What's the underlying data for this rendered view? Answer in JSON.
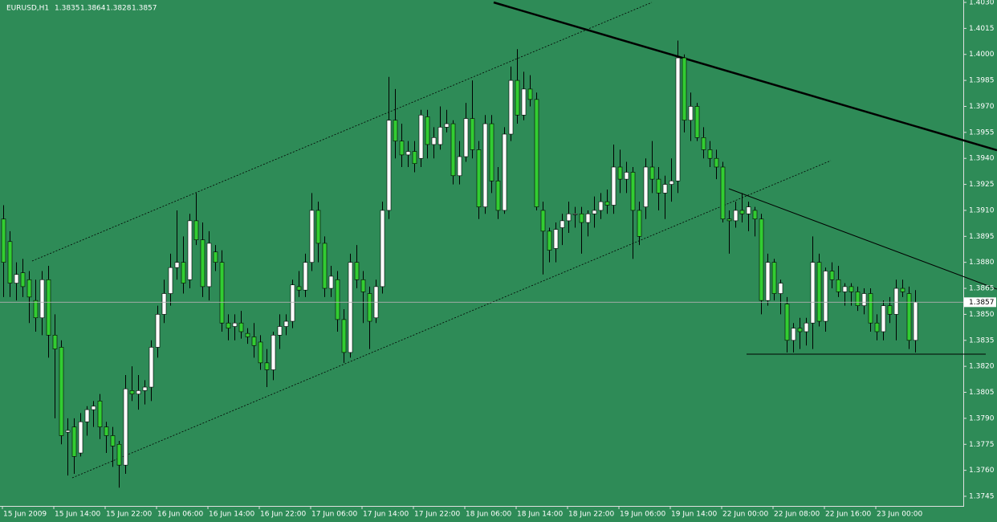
{
  "chart_data": {
    "type": "candlestick",
    "symbol": "EURUSD,H1",
    "categories": [
      "15 Jun 2009",
      null,
      null,
      null,
      null,
      null,
      null,
      null,
      "15 Jun 14:00",
      null,
      null,
      null,
      null,
      null,
      null,
      null,
      "15 Jun 22:00",
      null,
      null,
      null,
      null,
      null,
      null,
      null,
      "16 Jun 06:00",
      null,
      null,
      null,
      null,
      null,
      null,
      null,
      "16 Jun 14:00",
      null,
      null,
      null,
      null,
      null,
      null,
      null,
      "16 Jun 22:00",
      null,
      null,
      null,
      null,
      null,
      null,
      null,
      "17 Jun 06:00",
      null,
      null,
      null,
      null,
      null,
      null,
      null,
      "17 Jun 14:00",
      null,
      null,
      null,
      null,
      null,
      null,
      null,
      "17 Jun 22:00",
      null,
      null,
      null,
      null,
      null,
      null,
      null,
      "18 Jun 06:00",
      null,
      null,
      null,
      null,
      null,
      null,
      null,
      "18 Jun 14:00",
      null,
      null,
      null,
      null,
      null,
      null,
      null,
      "18 Jun 22:00",
      null,
      null,
      null,
      null,
      null,
      null,
      null,
      "19 Jun 06:00",
      null,
      null,
      null,
      null,
      null,
      null,
      null,
      "19 Jun 14:00",
      null,
      null,
      null,
      null,
      null,
      null,
      null,
      "22 Jun 00:00",
      null,
      null,
      null,
      null,
      null,
      null,
      null,
      "22 Jun 08:00",
      null,
      null,
      null,
      null,
      null,
      null,
      null,
      "22 Jun 16:00",
      null,
      null,
      null,
      null,
      null,
      null,
      null,
      "23 Jun 00:00",
      null,
      null,
      null,
      null,
      null,
      null
    ],
    "open": [
      1.3905,
      1.3892,
      1.3868,
      1.3874,
      1.387,
      1.3858,
      1.3848,
      1.387,
      1.3838,
      1.3831,
      1.3782,
      1.3785,
      1.377,
      1.3788,
      1.3795,
      1.38,
      1.3785,
      1.378,
      1.3775,
      1.3763,
      1.3806,
      1.3804,
      1.3806,
      1.3808,
      1.3831,
      1.385,
      1.3862,
      1.3877,
      1.388,
      1.387,
      1.3904,
      1.3893,
      1.3866,
      1.3886,
      1.388,
      1.3845,
      1.3843,
      1.3845,
      1.3839,
      1.3837,
      1.3834,
      1.3822,
      1.3818,
      1.3838,
      1.3843,
      1.3846,
      1.3866,
      1.3864,
      1.388,
      1.391,
      1.3891,
      1.3865,
      1.387,
      1.3847,
      1.3828,
      1.388,
      1.387,
      1.3862,
      1.3848,
      1.3866,
      1.391,
      1.3962,
      1.395,
      1.3942,
      1.3944,
      1.394,
      1.3964,
      1.3948,
      1.3948,
      1.3958,
      1.396,
      1.393,
      1.3941,
      1.3963,
      1.3945,
      1.3912,
      1.396,
      1.3927,
      1.391,
      1.3954,
      1.3985,
      1.3965,
      1.398,
      1.3974,
      1.391,
      1.3898,
      1.3888,
      1.39,
      1.3904,
      1.3908,
      1.3908,
      1.3903,
      1.3908,
      1.391,
      1.3915,
      1.3913,
      1.3935,
      1.3928,
      1.3932,
      1.391,
      1.3912,
      1.3935,
      1.3928,
      1.392,
      1.3925,
      1.3927,
      1.3998,
      1.3962,
      1.397,
      1.3952,
      1.3945,
      1.394,
      1.3935,
      1.3905,
      1.3904,
      1.391,
      1.3908,
      1.391,
      1.3905,
      1.3858,
      1.388,
      1.3862,
      1.3856,
      1.3835,
      1.3842,
      1.384,
      1.3845,
      1.388,
      1.3846,
      1.3875,
      1.387,
      1.3863,
      1.3866,
      1.3863,
      1.3855,
      1.3862,
      1.3845,
      1.384,
      1.3855,
      1.385,
      1.3865,
      1.3862,
      1.3835
    ],
    "high": [
      1.3913,
      1.3898,
      1.388,
      1.3882,
      1.3875,
      1.387,
      1.3875,
      1.3878,
      1.385,
      1.3835,
      1.379,
      1.379,
      1.3793,
      1.3797,
      1.38,
      1.3804,
      1.3788,
      1.3785,
      1.3777,
      1.3815,
      1.382,
      1.3815,
      1.3812,
      1.3835,
      1.3855,
      1.387,
      1.3885,
      1.391,
      1.3895,
      1.3908,
      1.392,
      1.3903,
      1.3898,
      1.389,
      1.3887,
      1.385,
      1.385,
      1.3852,
      1.3842,
      1.3845,
      1.3838,
      1.383,
      1.384,
      1.385,
      1.385,
      1.387,
      1.3875,
      1.3885,
      1.392,
      1.3915,
      1.3895,
      1.3878,
      1.3875,
      1.3853,
      1.3885,
      1.389,
      1.3875,
      1.3866,
      1.387,
      1.3915,
      1.3987,
      1.398,
      1.396,
      1.395,
      1.395,
      1.3968,
      1.3968,
      1.3958,
      1.397,
      1.3968,
      1.3962,
      1.395,
      1.3972,
      1.3985,
      1.395,
      1.3965,
      1.3965,
      1.3935,
      1.3958,
      1.3993,
      1.4003,
      1.399,
      1.3988,
      1.3978,
      1.3915,
      1.39,
      1.3903,
      1.3908,
      1.3915,
      1.3912,
      1.3912,
      1.391,
      1.3918,
      1.392,
      1.3922,
      1.3948,
      1.3945,
      1.3938,
      1.3935,
      1.3915,
      1.394,
      1.395,
      1.3935,
      1.393,
      1.394,
      1.4008,
      1.4,
      1.3978,
      1.3972,
      1.3958,
      1.395,
      1.3945,
      1.3938,
      1.391,
      1.3915,
      1.392,
      1.3915,
      1.3912,
      1.3908,
      1.3885,
      1.3882,
      1.387,
      1.386,
      1.3845,
      1.3848,
      1.3848,
      1.3895,
      1.3885,
      1.3877,
      1.388,
      1.3878,
      1.3868,
      1.3868,
      1.3866,
      1.3865,
      1.3865,
      1.385,
      1.3858,
      1.386,
      1.387,
      1.387,
      1.3866,
      1.3864
    ],
    "low": [
      1.386,
      1.386,
      1.3858,
      1.386,
      1.3845,
      1.384,
      1.3838,
      1.3825,
      1.379,
      1.3775,
      1.3757,
      1.3758,
      1.3768,
      1.378,
      1.3785,
      1.3778,
      1.377,
      1.3762,
      1.375,
      1.3758,
      1.38,
      1.3795,
      1.3798,
      1.38,
      1.3825,
      1.3845,
      1.3855,
      1.387,
      1.3862,
      1.3865,
      1.389,
      1.386,
      1.3858,
      1.3875,
      1.384,
      1.3835,
      1.3835,
      1.3836,
      1.3833,
      1.3825,
      1.3818,
      1.3808,
      1.3812,
      1.383,
      1.3838,
      1.3842,
      1.386,
      1.386,
      1.3875,
      1.388,
      1.386,
      1.386,
      1.384,
      1.3822,
      1.3825,
      1.3865,
      1.3845,
      1.383,
      1.3845,
      1.3862,
      1.3905,
      1.394,
      1.3935,
      1.3935,
      1.3932,
      1.3935,
      1.394,
      1.394,
      1.3945,
      1.3955,
      1.3925,
      1.3925,
      1.3938,
      1.394,
      1.3905,
      1.3908,
      1.392,
      1.3905,
      1.3908,
      1.395,
      1.396,
      1.3962,
      1.397,
      1.391,
      1.3873,
      1.388,
      1.388,
      1.389,
      1.3897,
      1.39,
      1.3885,
      1.3895,
      1.39,
      1.3905,
      1.3908,
      1.3908,
      1.392,
      1.392,
      1.3882,
      1.389,
      1.3905,
      1.392,
      1.391,
      1.3905,
      1.3915,
      1.392,
      1.3955,
      1.395,
      1.395,
      1.394,
      1.3935,
      1.3928,
      1.3903,
      1.3885,
      1.39,
      1.3903,
      1.3898,
      1.3895,
      1.385,
      1.3855,
      1.3858,
      1.385,
      1.3828,
      1.3828,
      1.383,
      1.3832,
      1.383,
      1.3843,
      1.384,
      1.3865,
      1.386,
      1.3855,
      1.3855,
      1.3852,
      1.385,
      1.384,
      1.3835,
      1.3835,
      1.3845,
      1.3835,
      1.386,
      1.383,
      1.3828
    ],
    "close": [
      1.388,
      1.3868,
      1.3873,
      1.3866,
      1.386,
      1.3848,
      1.387,
      1.3838,
      1.383,
      1.378,
      1.3783,
      1.3768,
      1.3788,
      1.3795,
      1.3797,
      1.3785,
      1.378,
      1.3774,
      1.3763,
      1.3807,
      1.3804,
      1.3806,
      1.3808,
      1.3831,
      1.385,
      1.3862,
      1.3877,
      1.388,
      1.3868,
      1.3904,
      1.3893,
      1.3866,
      1.3891,
      1.388,
      1.3845,
      1.3842,
      1.3845,
      1.384,
      1.3837,
      1.3832,
      1.3822,
      1.3818,
      1.3838,
      1.3843,
      1.3846,
      1.3867,
      1.3864,
      1.388,
      1.391,
      1.3891,
      1.3865,
      1.3872,
      1.3847,
      1.3828,
      1.388,
      1.387,
      1.3863,
      1.3846,
      1.3866,
      1.391,
      1.3962,
      1.395,
      1.3942,
      1.3944,
      1.3937,
      1.3965,
      1.3948,
      1.3952,
      1.3958,
      1.396,
      1.393,
      1.3941,
      1.3963,
      1.3945,
      1.3912,
      1.396,
      1.3927,
      1.391,
      1.3954,
      1.3985,
      1.3965,
      1.398,
      1.3974,
      1.3912,
      1.3898,
      1.3887,
      1.3899,
      1.3904,
      1.3908,
      1.3908,
      1.3903,
      1.3908,
      1.391,
      1.3915,
      1.3913,
      1.3935,
      1.3928,
      1.3932,
      1.391,
      1.3895,
      1.3935,
      1.3928,
      1.392,
      1.3925,
      1.3927,
      1.3998,
      1.3962,
      1.397,
      1.3952,
      1.3945,
      1.394,
      1.3935,
      1.3905,
      1.3904,
      1.391,
      1.3908,
      1.3912,
      1.3905,
      1.3858,
      1.388,
      1.3862,
      1.3868,
      1.3835,
      1.3842,
      1.384,
      1.3845,
      1.388,
      1.3846,
      1.3875,
      1.387,
      1.3863,
      1.3866,
      1.3863,
      1.3855,
      1.3862,
      1.3845,
      1.384,
      1.3855,
      1.385,
      1.3865,
      1.3863,
      1.3835,
      1.3857
    ],
    "up_color": "#ffffff",
    "down_color": "#32cd32",
    "ylim": [
      1.3745,
      1.403
    ],
    "yticks": [
      {
        "value": 1.403,
        "label": "1.4030"
      },
      1.4015,
      {
        "value": 1.4,
        "label": "1.4000"
      },
      1.3985,
      {
        "value": 1.397,
        "label": "1.3970"
      },
      1.3955,
      {
        "value": 1.394,
        "label": "1.3940"
      },
      1.3925,
      {
        "value": 1.391,
        "label": "1.3910"
      },
      1.3895,
      {
        "value": 1.388,
        "label": "1.3880"
      },
      1.3865,
      {
        "value": 1.385,
        "label": "1.3850"
      },
      1.3835,
      {
        "value": 1.382,
        "label": "1.3820"
      },
      1.3805,
      {
        "value": 1.379,
        "label": "1.3790"
      },
      1.3775,
      {
        "value": 1.376,
        "label": "1.3760"
      },
      1.3745
    ]
  }
}
